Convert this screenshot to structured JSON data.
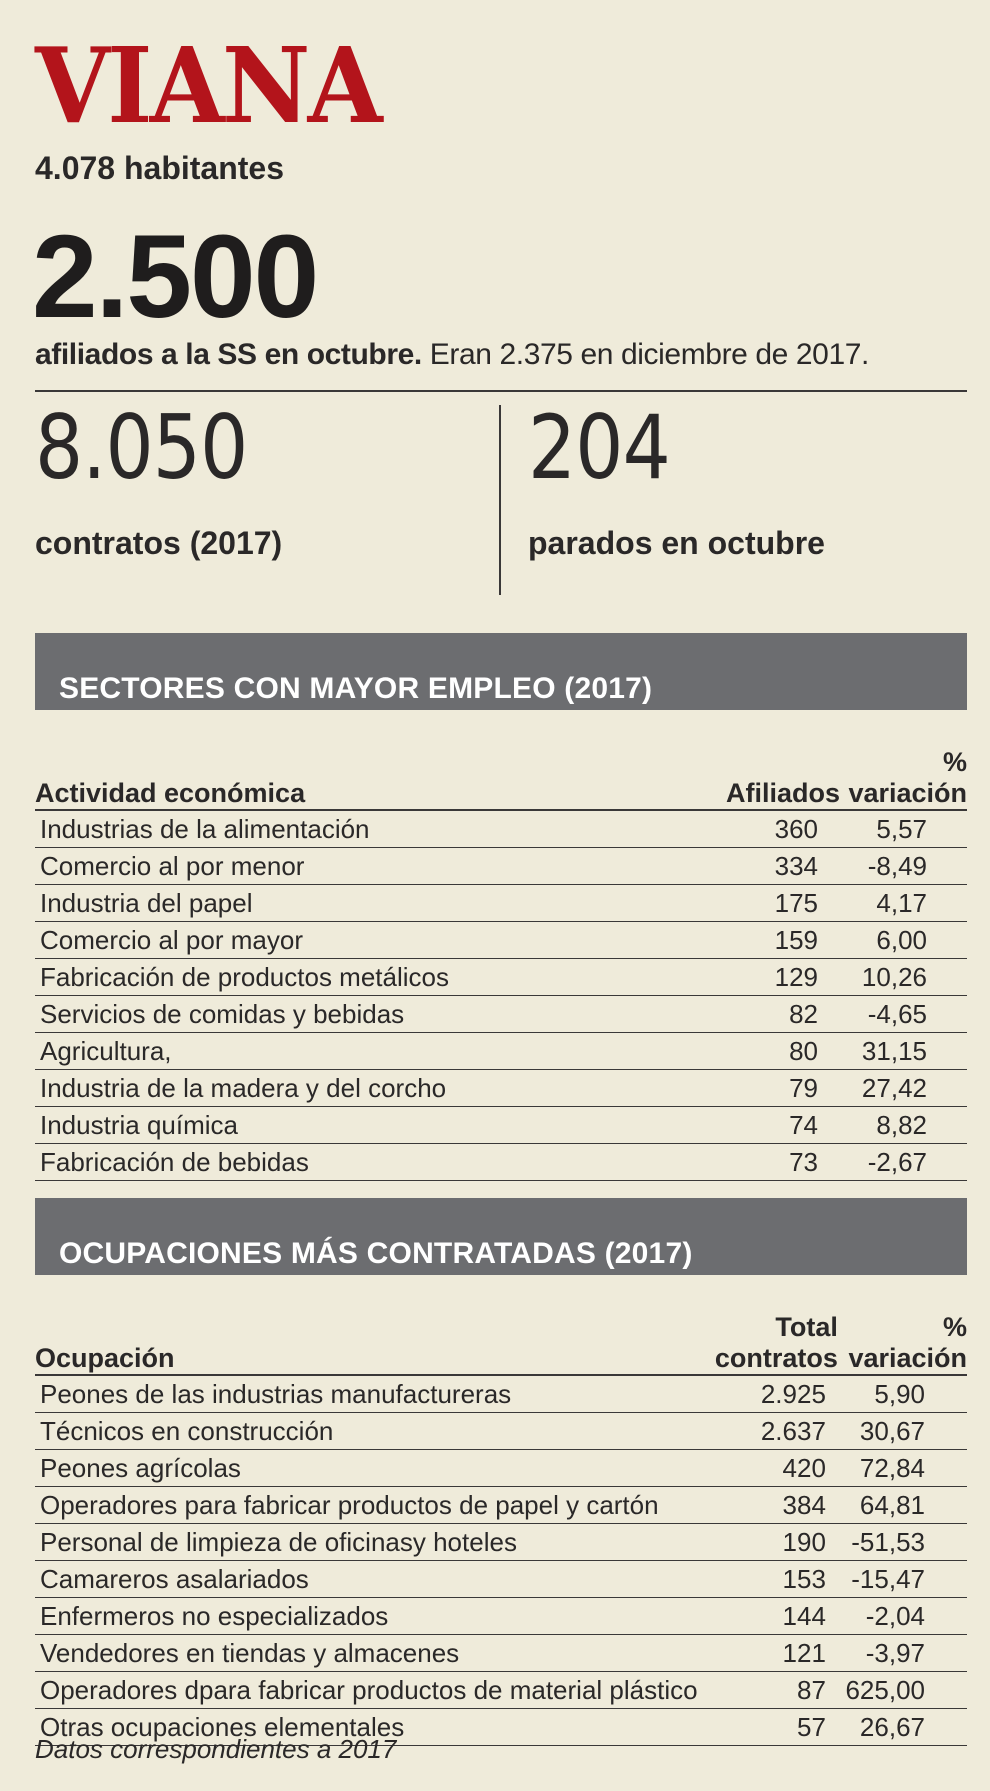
{
  "header": {
    "town": "VIANA",
    "population": "4.078 habitantes",
    "affiliates_number": "2.500",
    "affiliates_bold": "afiliados a la SS en octubre.",
    "affiliates_rest": " Eran 2.375 en diciembre de 2017."
  },
  "stats": {
    "contracts_number": "8.050",
    "contracts_label": "contratos (2017)",
    "unemployed_number": "204",
    "unemployed_label": "parados en octubre"
  },
  "sectors": {
    "title": "SECTORES CON MAYOR EMPLEO (2017)",
    "columns": [
      "Actividad económica",
      "Afiliados",
      "% variación"
    ],
    "rows": [
      [
        "Industrias de la alimentación",
        "360",
        "5,57"
      ],
      [
        "Comercio al por menor",
        "334",
        "-8,49"
      ],
      [
        "Industria del papel",
        "175",
        "4,17"
      ],
      [
        "Comercio al por mayor",
        "159",
        "6,00"
      ],
      [
        "Fabricación de productos metálicos",
        "129",
        "10,26"
      ],
      [
        "Servicios de comidas y bebidas",
        "82",
        "-4,65"
      ],
      [
        "Agricultura,",
        "80",
        "31,15"
      ],
      [
        "Industria de la madera y del corcho",
        "79",
        "27,42"
      ],
      [
        "Industria química",
        "74",
        "8,82"
      ],
      [
        "Fabricación de bebidas",
        "73",
        "-2,67"
      ]
    ]
  },
  "occupations": {
    "title": "OCUPACIONES MÁS CONTRATADAS (2017)",
    "columns": [
      "Ocupación",
      "Total contratos",
      "% variación"
    ],
    "rows": [
      [
        "Peones de las industrias manufactureras",
        "2.925",
        "5,90"
      ],
      [
        "Técnicos en construcción",
        "2.637",
        "30,67"
      ],
      [
        "Peones agrícolas",
        "420",
        "72,84"
      ],
      [
        "Operadores para fabricar productos de papel y cartón",
        "384",
        "64,81"
      ],
      [
        "Personal de limpieza de oficinasy hoteles",
        "190",
        "-51,53"
      ],
      [
        "Camareros asalariados",
        "153",
        "-15,47"
      ],
      [
        "Enfermeros no especializados",
        "144",
        "-2,04"
      ],
      [
        "Vendedores en tiendas y almacenes",
        "121",
        "-3,97"
      ],
      [
        "Operadores dpara fabricar productos de material plástico",
        "87",
        "625,00"
      ],
      [
        "Otras ocupaciones elementales",
        "57",
        "26,67"
      ]
    ]
  },
  "footnote": "Datos correspondientes a 2017",
  "colors": {
    "title_red": "#b3141b",
    "band_gray": "#6c6d70",
    "background": "#efebda"
  }
}
